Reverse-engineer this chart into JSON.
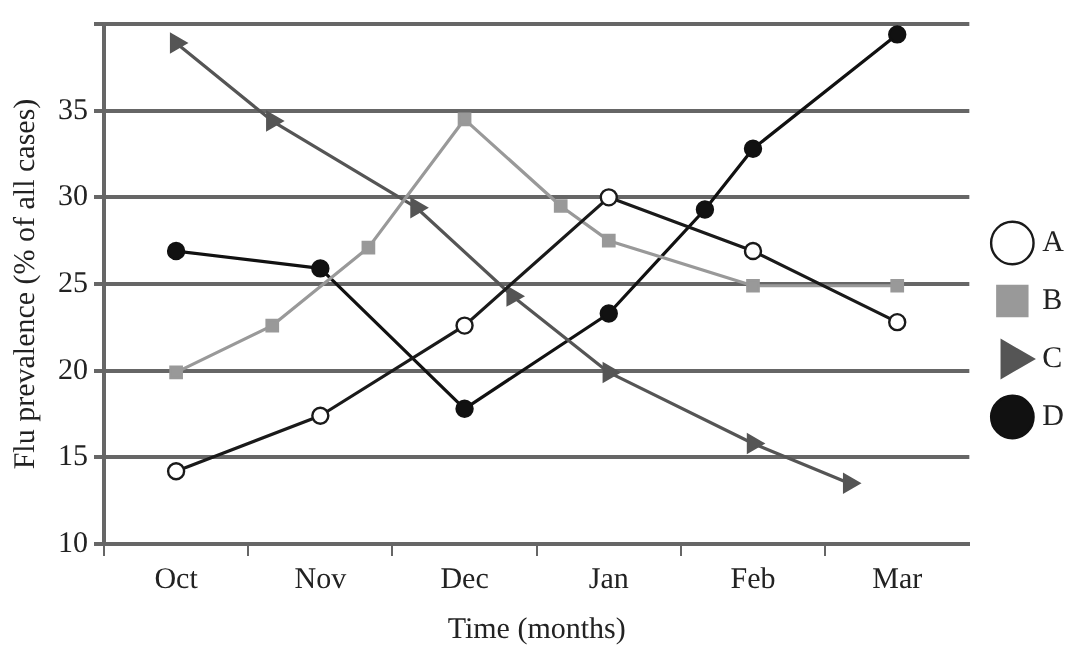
{
  "chart_data": {
    "type": "line",
    "xlabel": "Time (months)",
    "ylabel": "Flu prevalence (% of all cases)",
    "categories": [
      null,
      "Oct",
      null,
      null,
      "Nov",
      null,
      null,
      "Dec",
      null,
      null,
      "Jan",
      null,
      null,
      "Feb",
      null,
      null,
      "Mar",
      null
    ],
    "ylim": [
      10,
      40
    ],
    "yticks": [
      10,
      15,
      20,
      25,
      30,
      35,
      {
        "value": 40,
        "label": null
      }
    ],
    "grid": "y",
    "legend": "right",
    "line_style": "solid",
    "series": [
      {
        "name": "A",
        "color": "#1a1a1a",
        "marker": "circle",
        "values": [
          null,
          14.2,
          null,
          null,
          17.4,
          null,
          null,
          22.6,
          null,
          null,
          30,
          null,
          null,
          26.9,
          null,
          null,
          22.8,
          null
        ]
      },
      {
        "name": "B",
        "color": "#999999",
        "marker": "square",
        "values": [
          null,
          19.9,
          null,
          22.6,
          null,
          27.1,
          null,
          34.5,
          null,
          29.5,
          27.5,
          null,
          null,
          24.9,
          null,
          null,
          24.9,
          null
        ]
      },
      {
        "name": "C",
        "color": "#555555",
        "marker": "triangle",
        "values": [
          null,
          38.9,
          null,
          34.4,
          null,
          null,
          29.4,
          null,
          24.3,
          null,
          19.9,
          null,
          null,
          15.8,
          null,
          13.5,
          null,
          null
        ]
      },
      {
        "name": "D",
        "color": "#111111",
        "marker": "circle",
        "values": [
          null,
          26.9,
          null,
          null,
          25.9,
          null,
          null,
          17.8,
          null,
          null,
          23.3,
          null,
          29.3,
          32.8,
          null,
          null,
          39.4,
          null
        ]
      }
    ]
  }
}
